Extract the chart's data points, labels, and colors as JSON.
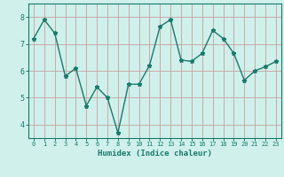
{
  "x": [
    0,
    1,
    2,
    3,
    4,
    5,
    6,
    7,
    8,
    9,
    10,
    11,
    12,
    13,
    14,
    15,
    16,
    17,
    18,
    19,
    20,
    21,
    22,
    23
  ],
  "y": [
    7.2,
    7.9,
    7.4,
    5.8,
    6.1,
    4.7,
    5.4,
    5.0,
    3.7,
    5.5,
    5.5,
    6.2,
    7.65,
    7.9,
    6.4,
    6.35,
    6.65,
    7.5,
    7.2,
    6.65,
    5.65,
    6.0,
    6.15,
    6.35
  ],
  "title": "",
  "xlabel": "Humidex (Indice chaleur)",
  "ylabel": "",
  "line_color": "#1a7a6a",
  "bg_color": "#cff0eb",
  "grid_color_major": "#c8a0a0",
  "ylim": [
    3.5,
    8.5
  ],
  "xlim": [
    -0.5,
    23.5
  ],
  "yticks": [
    4,
    5,
    6,
    7,
    8
  ],
  "xticks": [
    0,
    1,
    2,
    3,
    4,
    5,
    6,
    7,
    8,
    9,
    10,
    11,
    12,
    13,
    14,
    15,
    16,
    17,
    18,
    19,
    20,
    21,
    22,
    23
  ]
}
